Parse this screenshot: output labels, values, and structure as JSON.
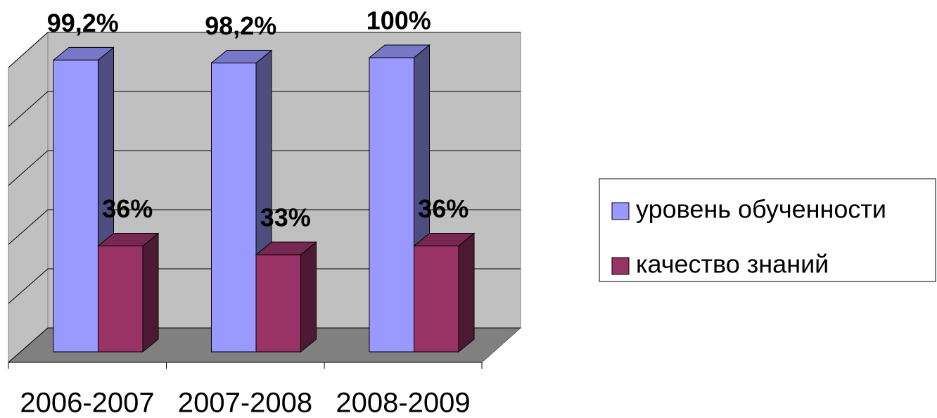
{
  "chart_data": {
    "type": "bar3d",
    "categories": [
      "2006-2007",
      "2007-2008",
      "2008-2009"
    ],
    "series": [
      {
        "name": "уровень обученности",
        "color": "#9999ff",
        "values": [
          99.2,
          98.2,
          100
        ],
        "value_labels": [
          "99,2%",
          "98,2%",
          "100%"
        ]
      },
      {
        "name": "качество знаний",
        "color": "#993366",
        "values": [
          36,
          33,
          36
        ],
        "value_labels": [
          "36%",
          "33%",
          "36%"
        ]
      }
    ],
    "ylim": [
      0,
      100
    ],
    "yticks": [
      0,
      20,
      40,
      60,
      80,
      100
    ],
    "grid": true,
    "legend": "right"
  }
}
